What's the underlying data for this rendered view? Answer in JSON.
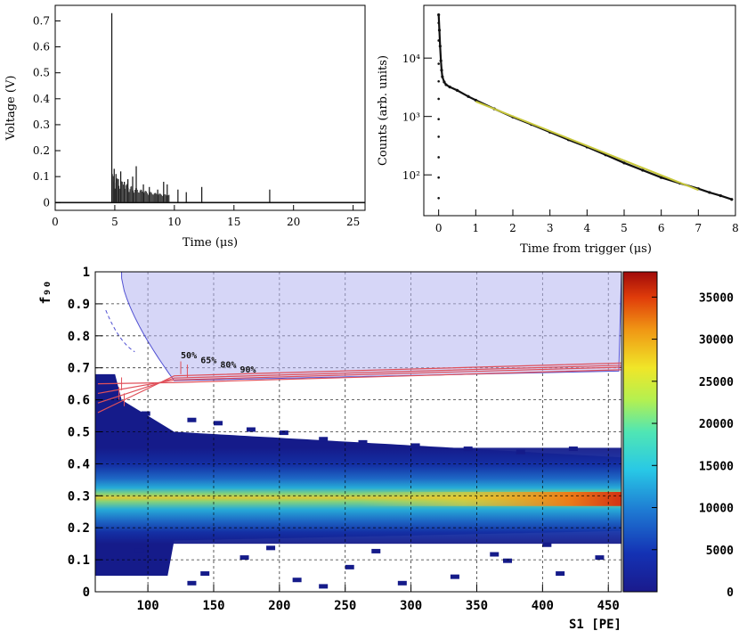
{
  "chart_data": [
    {
      "type": "line",
      "xlabel": "Time (μs)",
      "ylabel": "Voltage (V)",
      "xlim": [
        0,
        26
      ],
      "ylim": [
        -0.03,
        0.76
      ],
      "xticks": [
        0,
        5,
        10,
        15,
        20,
        25
      ],
      "xtick_labels": [
        "0",
        "5",
        "10",
        "15",
        "20",
        "25"
      ],
      "yticks": [
        0,
        0.1,
        0.2,
        0.3,
        0.4,
        0.5,
        0.6,
        0.7
      ],
      "ytick_labels": [
        "0",
        "0.1",
        "0.2",
        "0.3",
        "0.4",
        "0.5",
        "0.6",
        "0.7"
      ],
      "baseline": 0.0,
      "spikes": {
        "x": [
          4.75,
          4.95,
          5.1,
          5.3,
          5.5,
          5.8,
          6.1,
          6.5,
          6.8,
          7.4,
          7.9,
          8.6,
          9.1,
          9.4,
          10.3,
          11.0,
          12.3,
          18.0
        ],
        "y": [
          0.73,
          0.13,
          0.11,
          0.09,
          0.12,
          0.08,
          0.09,
          0.1,
          0.14,
          0.07,
          0.06,
          0.05,
          0.08,
          0.07,
          0.05,
          0.04,
          0.06,
          0.05
        ]
      }
    },
    {
      "type": "scatter",
      "xlabel": "Time from trigger (μs)",
      "ylabel": "Counts (arb. units)",
      "yscale": "log",
      "xlim": [
        -0.4,
        8
      ],
      "ylim": [
        20,
        80000
      ],
      "xticks": [
        0,
        1,
        2,
        3,
        4,
        5,
        6,
        7,
        8
      ],
      "xtick_labels": [
        "0",
        "1",
        "2",
        "3",
        "4",
        "5",
        "6",
        "7",
        "8"
      ],
      "yticks": [
        100,
        1000,
        10000
      ],
      "ytick_labels": [
        "10²",
        "10³",
        "10⁴"
      ],
      "points_x": [
        0.0,
        0.02,
        0.04,
        0.06,
        0.08,
        0.1,
        0.15,
        0.2,
        0.3,
        0.5,
        0.8,
        1.0,
        1.5,
        2.0,
        2.5,
        3.0,
        3.5,
        4.0,
        4.5,
        5.0,
        5.5,
        6.0,
        6.5,
        7.0,
        7.3,
        7.6,
        7.9
      ],
      "points_y": [
        55000,
        30000,
        16000,
        9000,
        6200,
        4800,
        3900,
        3500,
        3200,
        2800,
        2200,
        1900,
        1350,
        980,
        730,
        540,
        400,
        300,
        220,
        160,
        120,
        90,
        72,
        58,
        50,
        44,
        38
      ],
      "fit_color": "#c8c83c",
      "fit_x": [
        1.0,
        7.0
      ],
      "fit_y": [
        1800,
        55
      ]
    },
    {
      "type": "heatmap",
      "xlabel": "S1 [PE]",
      "ylabel": "f₉₀",
      "xlim": [
        60,
        460
      ],
      "ylim": [
        0,
        1
      ],
      "xticks": [
        100,
        150,
        200,
        250,
        300,
        350,
        400,
        450
      ],
      "xtick_labels": [
        "100",
        "150",
        "200",
        "250",
        "300",
        "350",
        "400",
        "450"
      ],
      "yticks": [
        0,
        0.1,
        0.2,
        0.3,
        0.4,
        0.5,
        0.6,
        0.7,
        0.8,
        0.9,
        1
      ],
      "ytick_labels": [
        "0",
        "0.1",
        "0.2",
        "0.3",
        "0.4",
        "0.5",
        "0.6",
        "0.7",
        "0.8",
        "0.9",
        "1"
      ],
      "band_center": 0.29,
      "band_peak_count": 37000,
      "colorbar": {
        "min": 0,
        "max": 38000,
        "ticks": [
          0,
          5000,
          10000,
          15000,
          20000,
          25000,
          30000,
          35000
        ],
        "tick_labels": [
          "0",
          "5000",
          "10000",
          "15000",
          "20000",
          "25000",
          "30000",
          "35000"
        ]
      },
      "acceptance_labels": [
        "50%",
        "65%",
        "80%",
        "90%"
      ],
      "region_color": "#b4b4f0",
      "contour_color": "#e0505a"
    }
  ]
}
